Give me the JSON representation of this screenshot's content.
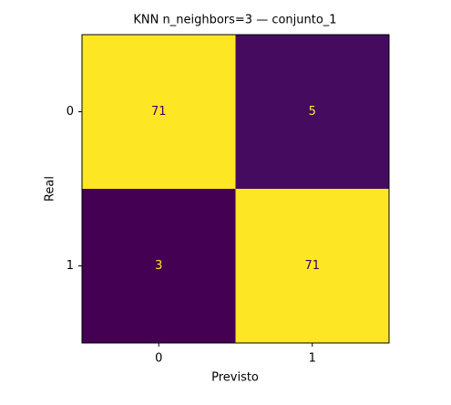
{
  "chart_data": {
    "type": "heatmap",
    "title": "KNN n_neighbors=3 — conjunto_1",
    "x_label": "Previsto",
    "y_label": "Real",
    "x_categories": [
      "0",
      "1"
    ],
    "y_categories": [
      "0",
      "1"
    ],
    "values": [
      [
        71,
        5
      ],
      [
        3,
        71
      ]
    ],
    "colormap": [
      "#440154",
      "#482878",
      "#3e4989",
      "#31688e",
      "#26828e",
      "#1f9e89",
      "#35b779",
      "#6ece58",
      "#b5de2b",
      "#fde725"
    ]
  }
}
